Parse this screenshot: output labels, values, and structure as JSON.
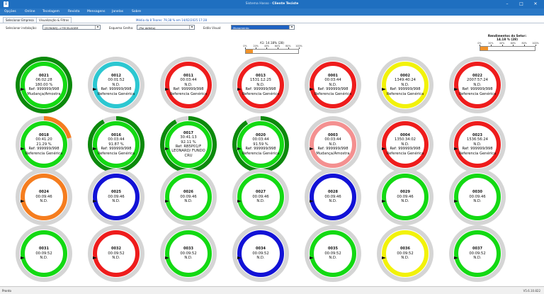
{
  "window": {
    "title_app": "Sistema Hasso",
    "title_sep": " - ",
    "title_client": "Cliente Teciste"
  },
  "menu": [
    "Opções",
    "Online",
    "Tecelagem",
    "Revista",
    "Mensagens",
    "Janelas",
    "Sobre"
  ],
  "tabs": [
    "Selecionar Empresa",
    "Visualização & Filtros"
  ],
  "average": "Média da 8 Teares: 79,38 % em 14/02/2025 17:28",
  "filters": {
    "installation": {
      "label": "Selecionar instalação:",
      "value": "[ECRANS]-->TECELAGEM"
    },
    "schema": {
      "label": "Esquema Grelha:",
      "value": "(Por defeito)"
    },
    "style": {
      "label": "Estilo Visual:",
      "value": "Monomento"
    }
  },
  "scale_a": {
    "label": "A1: 14.18% (28)",
    "ticks": [
      "0%",
      "20%",
      "40%",
      "60%",
      "80%",
      "100%"
    ],
    "fill": 0.14
  },
  "scale_b": {
    "label_1": "Rendimentos do Setor:",
    "label_2": "14.18 % (28)",
    "ticks": [
      "0%",
      "20%",
      "40%",
      "60%",
      "80%",
      "100%"
    ],
    "fill": 0.14
  },
  "colors": {
    "green": "#13d913",
    "cyan": "#2cc7d1",
    "red": "#ee1c1c",
    "yellow": "#f2f20a",
    "orange": "#f57d1f",
    "blue": "#1212d6",
    "salmon": "#f49090",
    "darkgreen": "#0c8a0c",
    "ring_bg": "#d5d5d5"
  },
  "machines": [
    {
      "code": "0021",
      "lines": [
        "06:02:28",
        "180.00 %",
        "Ref: 999999/998",
        "Mudança/Amostra"
      ],
      "color": "green",
      "outer": "darkgreen",
      "progress": 1.0
    },
    {
      "code": "0012",
      "lines": [
        "00:01:52",
        "N.D.",
        "Ref: 999999/998",
        "Referencia Genérica"
      ],
      "color": "cyan",
      "outer": null,
      "progress": 0
    },
    {
      "code": "0011",
      "lines": [
        "00:03:44",
        "N.D.",
        "Ref: 999999/998",
        "Referencia Genérica"
      ],
      "color": "red",
      "outer": null,
      "progress": 0
    },
    {
      "code": "0013",
      "lines": [
        "1531:12:25",
        "N.D.",
        "Ref: 999999/998",
        "Referencia Genérica"
      ],
      "color": "red",
      "outer": null,
      "progress": 0
    },
    {
      "code": "0001",
      "lines": [
        "00:03:44",
        "N.D.",
        "Ref: 999999/998",
        "Referencia Genérica"
      ],
      "color": "red",
      "outer": null,
      "progress": 0
    },
    {
      "code": "0002",
      "lines": [
        "1349:40:24",
        "N.D.",
        "Ref: 999999/998",
        "Referencia Genérica"
      ],
      "color": "yellow",
      "outer": null,
      "progress": 0
    },
    {
      "code": "0022",
      "lines": [
        "2007:57:24",
        "N.D.",
        "Ref: 999999/998",
        "Referencia Genérica"
      ],
      "color": "red",
      "outer": null,
      "progress": 0
    },
    {
      "code": "0018",
      "lines": [
        "00:41:20",
        "21.29 %",
        "Ref: 999999/998",
        "Referencia Genérica"
      ],
      "color": "green",
      "outer": "orange",
      "progress": 0.21
    },
    {
      "code": "0016",
      "lines": [
        "00:03:44",
        "91.87 %",
        "Ref: 999999/998",
        "Referencia Genérica"
      ],
      "color": "green",
      "outer": "darkgreen",
      "progress": 0.92
    },
    {
      "code": "0017",
      "lines": [
        "30:41:13",
        "92.11 %",
        "Ref: RB5P01/F",
        "LEONARD/ FUNDO",
        "CRU"
      ],
      "color": "green",
      "outer": "darkgreen",
      "progress": 0.92
    },
    {
      "code": "0020",
      "lines": [
        "00:03:44",
        "91.59 %",
        "Ref: 999999/998",
        "Referencia Genérica"
      ],
      "color": "green",
      "outer": "darkgreen",
      "progress": 0.91
    },
    {
      "code": "0003",
      "lines": [
        "00:03:44",
        "N.D.",
        "Ref: 999999/998",
        "Mudança/Amostra"
      ],
      "color": "salmon",
      "outer": null,
      "progress": 0
    },
    {
      "code": "0004",
      "lines": [
        "1350:34:02",
        "N.D.",
        "Ref: 999999/998",
        "Referencia Genérica"
      ],
      "color": "red",
      "outer": null,
      "progress": 0
    },
    {
      "code": "0023",
      "lines": [
        "1536:56:24",
        "N.D.",
        "Ref: 999999/998",
        "Referencia Genérica"
      ],
      "color": "red",
      "outer": null,
      "progress": 0
    },
    {
      "code": "0024",
      "lines": [
        "00:09:46",
        "N.D."
      ],
      "color": "orange",
      "outer": null,
      "progress": 0
    },
    {
      "code": "0025",
      "lines": [
        "00:09:46",
        "N.D."
      ],
      "color": "blue",
      "outer": null,
      "progress": 0
    },
    {
      "code": "0026",
      "lines": [
        "00:09:46",
        "N.D."
      ],
      "color": "green",
      "outer": null,
      "progress": 0
    },
    {
      "code": "0027",
      "lines": [
        "00:09:46",
        "N.D."
      ],
      "color": "green",
      "outer": null,
      "progress": 0
    },
    {
      "code": "0028",
      "lines": [
        "00:09:46",
        "N.D."
      ],
      "color": "blue",
      "outer": null,
      "progress": 0
    },
    {
      "code": "0029",
      "lines": [
        "00:09:46",
        "N.D."
      ],
      "color": "green",
      "outer": null,
      "progress": 0
    },
    {
      "code": "0030",
      "lines": [
        "00:09:46",
        "N.D."
      ],
      "color": "green",
      "outer": null,
      "progress": 0
    },
    {
      "code": "0031",
      "lines": [
        "00:09:52",
        "N.D."
      ],
      "color": "green",
      "outer": null,
      "progress": 0
    },
    {
      "code": "0032",
      "lines": [
        "00:09:52",
        "N.D."
      ],
      "color": "red",
      "outer": null,
      "progress": 0
    },
    {
      "code": "0033",
      "lines": [
        "00:09:52",
        "N.D."
      ],
      "color": "green",
      "outer": null,
      "progress": 0
    },
    {
      "code": "0034",
      "lines": [
        "00:09:52",
        "N.D."
      ],
      "color": "blue",
      "outer": null,
      "progress": 0
    },
    {
      "code": "0035",
      "lines": [
        "00:09:52",
        "N.D."
      ],
      "color": "green",
      "outer": null,
      "progress": 0
    },
    {
      "code": "0036",
      "lines": [
        "00:09:52",
        "N.D."
      ],
      "color": "yellow",
      "outer": null,
      "progress": 0
    },
    {
      "code": "0037",
      "lines": [
        "00:09:52",
        "N.D."
      ],
      "color": "green",
      "outer": null,
      "progress": 0
    }
  ],
  "status": {
    "left": "Pronto",
    "right": "V5.6.10.822"
  }
}
